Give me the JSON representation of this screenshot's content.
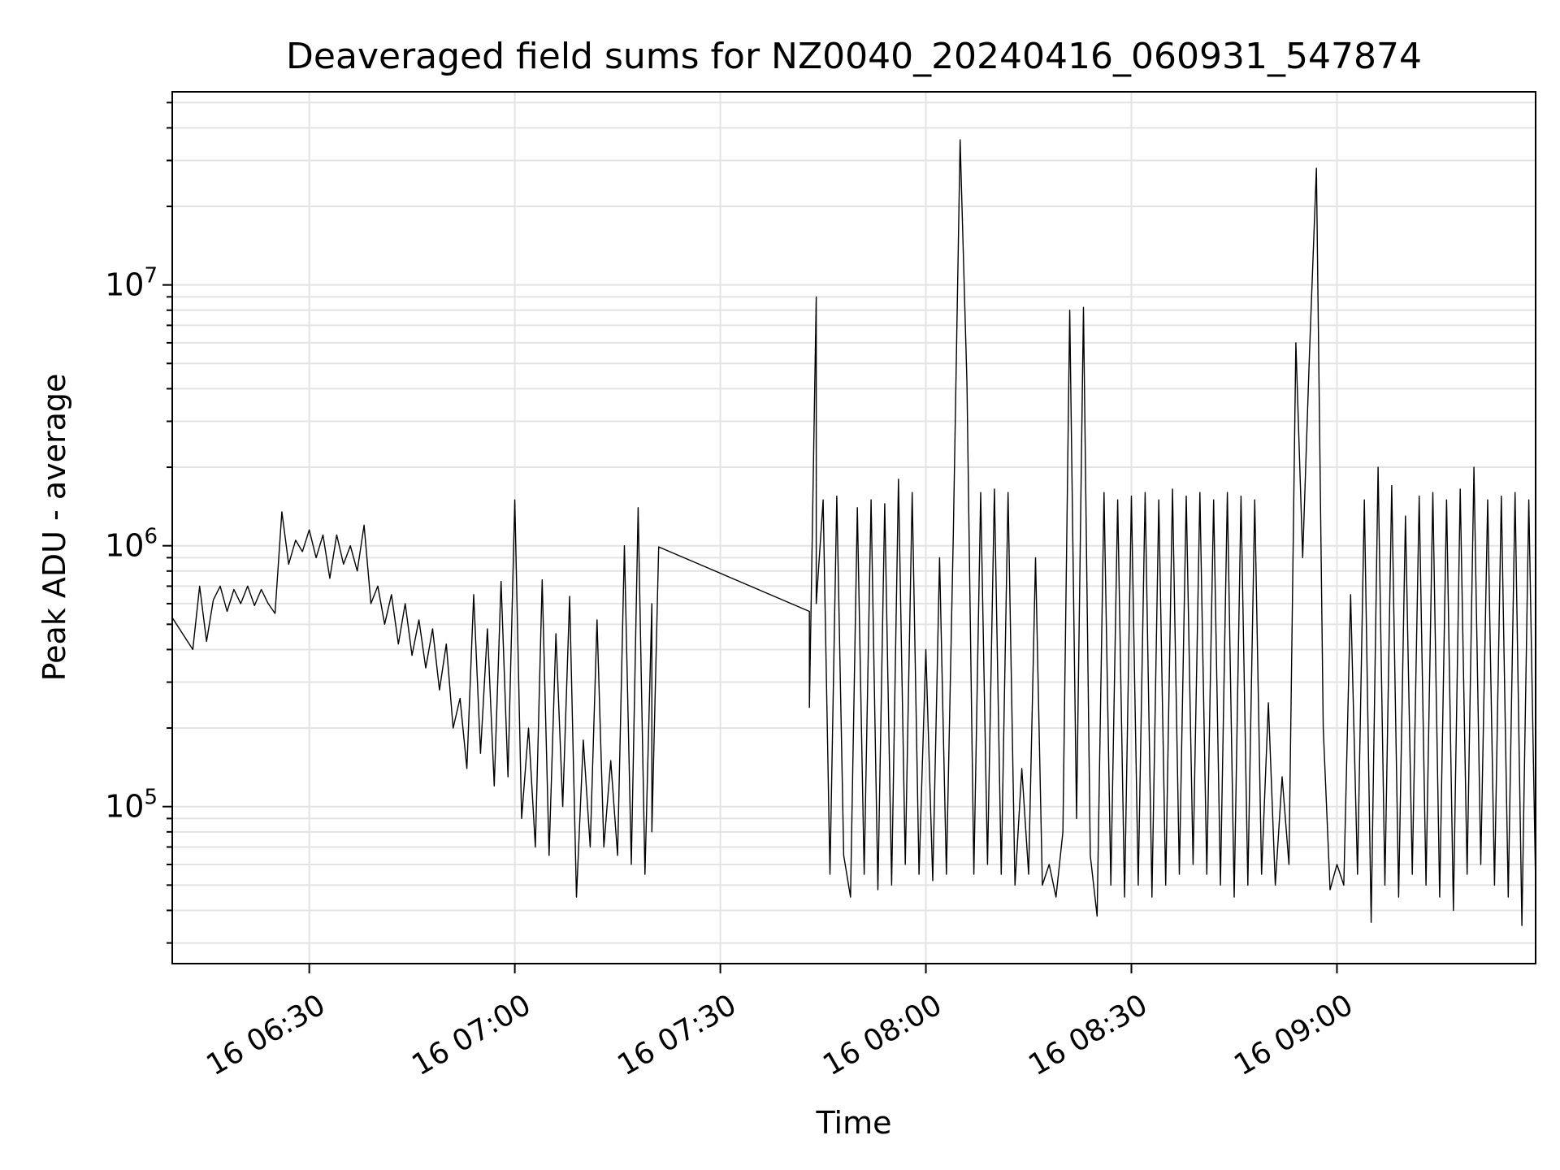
{
  "chart_data": {
    "type": "line",
    "title": "Deaveraged field sums for NZ0040_20240416_060931_547874",
    "xlabel": "Time",
    "ylabel": "Peak ADU - average",
    "x_is_time": true,
    "xlim": [
      "2024-04-16 06:10",
      "2024-04-16 09:29"
    ],
    "ylim": [
      25000,
      55000000
    ],
    "y_scale": "log",
    "grid": true,
    "x_ticks": [
      {
        "t": "2024-04-16 06:30",
        "label": "16 06:30"
      },
      {
        "t": "2024-04-16 07:00",
        "label": "16 07:00"
      },
      {
        "t": "2024-04-16 07:30",
        "label": "16 07:30"
      },
      {
        "t": "2024-04-16 08:00",
        "label": "16 08:00"
      },
      {
        "t": "2024-04-16 08:30",
        "label": "16 08:30"
      },
      {
        "t": "2024-04-16 09:00",
        "label": "16 09:00"
      }
    ],
    "y_ticks": [
      {
        "value": 100000,
        "base": "10",
        "exp": "5"
      },
      {
        "value": 1000000,
        "base": "10",
        "exp": "6"
      },
      {
        "value": 10000000,
        "base": "10",
        "exp": "7"
      }
    ],
    "series": [
      {
        "color": "#000000",
        "points": [
          [
            "2024-04-16 06:10",
            530000
          ],
          [
            "2024-04-16 06:13",
            400000
          ],
          [
            "2024-04-16 06:14",
            700000
          ],
          [
            "2024-04-16 06:15",
            430000
          ],
          [
            "2024-04-16 06:16",
            620000
          ],
          [
            "2024-04-16 06:17",
            700000
          ],
          [
            "2024-04-16 06:18",
            560000
          ],
          [
            "2024-04-16 06:19",
            680000
          ],
          [
            "2024-04-16 06:20",
            600000
          ],
          [
            "2024-04-16 06:21",
            700000
          ],
          [
            "2024-04-16 06:22",
            590000
          ],
          [
            "2024-04-16 06:23",
            680000
          ],
          [
            "2024-04-16 06:24",
            600000
          ],
          [
            "2024-04-16 06:25",
            550000
          ],
          [
            "2024-04-16 06:26",
            1350000
          ],
          [
            "2024-04-16 06:27",
            850000
          ],
          [
            "2024-04-16 06:28",
            1050000
          ],
          [
            "2024-04-16 06:29",
            950000
          ],
          [
            "2024-04-16 06:30",
            1150000
          ],
          [
            "2024-04-16 06:31",
            900000
          ],
          [
            "2024-04-16 06:32",
            1100000
          ],
          [
            "2024-04-16 06:33",
            750000
          ],
          [
            "2024-04-16 06:34",
            1100000
          ],
          [
            "2024-04-16 06:35",
            850000
          ],
          [
            "2024-04-16 06:36",
            1000000
          ],
          [
            "2024-04-16 06:37",
            800000
          ],
          [
            "2024-04-16 06:38",
            1200000
          ],
          [
            "2024-04-16 06:39",
            600000
          ],
          [
            "2024-04-16 06:40",
            700000
          ],
          [
            "2024-04-16 06:41",
            500000
          ],
          [
            "2024-04-16 06:42",
            650000
          ],
          [
            "2024-04-16 06:43",
            420000
          ],
          [
            "2024-04-16 06:44",
            600000
          ],
          [
            "2024-04-16 06:45",
            380000
          ],
          [
            "2024-04-16 06:46",
            520000
          ],
          [
            "2024-04-16 06:47",
            340000
          ],
          [
            "2024-04-16 06:48",
            480000
          ],
          [
            "2024-04-16 06:49",
            280000
          ],
          [
            "2024-04-16 06:50",
            420000
          ],
          [
            "2024-04-16 06:51",
            200000
          ],
          [
            "2024-04-16 06:52",
            260000
          ],
          [
            "2024-04-16 06:53",
            140000
          ],
          [
            "2024-04-16 06:54",
            650000
          ],
          [
            "2024-04-16 06:55",
            160000
          ],
          [
            "2024-04-16 06:56",
            480000
          ],
          [
            "2024-04-16 06:57",
            120000
          ],
          [
            "2024-04-16 06:58",
            730000
          ],
          [
            "2024-04-16 06:59",
            130000
          ],
          [
            "2024-04-16 07:00",
            1500000
          ],
          [
            "2024-04-16 07:01",
            90000
          ],
          [
            "2024-04-16 07:02",
            200000
          ],
          [
            "2024-04-16 07:03",
            70000
          ],
          [
            "2024-04-16 07:04",
            740000
          ],
          [
            "2024-04-16 07:05",
            65000
          ],
          [
            "2024-04-16 07:06",
            460000
          ],
          [
            "2024-04-16 07:07",
            100000
          ],
          [
            "2024-04-16 07:08",
            640000
          ],
          [
            "2024-04-16 07:09",
            45000
          ],
          [
            "2024-04-16 07:10",
            180000
          ],
          [
            "2024-04-16 07:11",
            70000
          ],
          [
            "2024-04-16 07:12",
            520000
          ],
          [
            "2024-04-16 07:13",
            70000
          ],
          [
            "2024-04-16 07:14",
            150000
          ],
          [
            "2024-04-16 07:15",
            65000
          ],
          [
            "2024-04-16 07:16",
            1000000
          ],
          [
            "2024-04-16 07:17",
            60000
          ],
          [
            "2024-04-16 07:18",
            1400000
          ],
          [
            "2024-04-16 07:19",
            55000
          ],
          [
            "2024-04-16 07:20",
            600000
          ],
          [
            "2024-04-16 07:20",
            80000
          ],
          [
            "2024-04-16 07:21",
            990000
          ],
          [
            "2024-04-16 07:43",
            560000
          ],
          [
            "2024-04-16 07:43",
            240000
          ],
          [
            "2024-04-16 07:44",
            9000000
          ],
          [
            "2024-04-16 07:44",
            600000
          ],
          [
            "2024-04-16 07:45",
            1500000
          ],
          [
            "2024-04-16 07:46",
            55000
          ],
          [
            "2024-04-16 07:47",
            1550000
          ],
          [
            "2024-04-16 07:48",
            65000
          ],
          [
            "2024-04-16 07:49",
            45000
          ],
          [
            "2024-04-16 07:50",
            1400000
          ],
          [
            "2024-04-16 07:51",
            55000
          ],
          [
            "2024-04-16 07:52",
            1500000
          ],
          [
            "2024-04-16 07:53",
            48000
          ],
          [
            "2024-04-16 07:54",
            1450000
          ],
          [
            "2024-04-16 07:55",
            50000
          ],
          [
            "2024-04-16 07:56",
            1800000
          ],
          [
            "2024-04-16 07:57",
            60000
          ],
          [
            "2024-04-16 07:58",
            1600000
          ],
          [
            "2024-04-16 07:59",
            55000
          ],
          [
            "2024-04-16 08:00",
            400000
          ],
          [
            "2024-04-16 08:01",
            52000
          ],
          [
            "2024-04-16 08:02",
            900000
          ],
          [
            "2024-04-16 08:03",
            55000
          ],
          [
            "2024-04-16 08:04",
            1100000
          ],
          [
            "2024-04-16 08:05",
            36000000
          ],
          [
            "2024-04-16 08:06",
            4200000
          ],
          [
            "2024-04-16 08:07",
            55000
          ],
          [
            "2024-04-16 08:08",
            1600000
          ],
          [
            "2024-04-16 08:09",
            60000
          ],
          [
            "2024-04-16 08:10",
            1650000
          ],
          [
            "2024-04-16 08:11",
            55000
          ],
          [
            "2024-04-16 08:12",
            1600000
          ],
          [
            "2024-04-16 08:13",
            50000
          ],
          [
            "2024-04-16 08:14",
            140000
          ],
          [
            "2024-04-16 08:15",
            55000
          ],
          [
            "2024-04-16 08:16",
            900000
          ],
          [
            "2024-04-16 08:17",
            50000
          ],
          [
            "2024-04-16 08:18",
            60000
          ],
          [
            "2024-04-16 08:19",
            45000
          ],
          [
            "2024-04-16 08:20",
            80000
          ],
          [
            "2024-04-16 08:21",
            8000000
          ],
          [
            "2024-04-16 08:22",
            90000
          ],
          [
            "2024-04-16 08:23",
            8200000
          ],
          [
            "2024-04-16 08:24",
            65000
          ],
          [
            "2024-04-16 08:25",
            38000
          ],
          [
            "2024-04-16 08:26",
            1600000
          ],
          [
            "2024-04-16 08:27",
            50000
          ],
          [
            "2024-04-16 08:28",
            1500000
          ],
          [
            "2024-04-16 08:29",
            45000
          ],
          [
            "2024-04-16 08:30",
            1550000
          ],
          [
            "2024-04-16 08:31",
            50000
          ],
          [
            "2024-04-16 08:32",
            1600000
          ],
          [
            "2024-04-16 08:33",
            45000
          ],
          [
            "2024-04-16 08:34",
            1500000
          ],
          [
            "2024-04-16 08:35",
            50000
          ],
          [
            "2024-04-16 08:36",
            1650000
          ],
          [
            "2024-04-16 08:37",
            55000
          ],
          [
            "2024-04-16 08:38",
            1550000
          ],
          [
            "2024-04-16 08:39",
            60000
          ],
          [
            "2024-04-16 08:40",
            1600000
          ],
          [
            "2024-04-16 08:41",
            55000
          ],
          [
            "2024-04-16 08:42",
            1500000
          ],
          [
            "2024-04-16 08:43",
            50000
          ],
          [
            "2024-04-16 08:44",
            1600000
          ],
          [
            "2024-04-16 08:45",
            45000
          ],
          [
            "2024-04-16 08:46",
            1550000
          ],
          [
            "2024-04-16 08:47",
            50000
          ],
          [
            "2024-04-16 08:48",
            1500000
          ],
          [
            "2024-04-16 08:49",
            55000
          ],
          [
            "2024-04-16 08:50",
            250000
          ],
          [
            "2024-04-16 08:51",
            50000
          ],
          [
            "2024-04-16 08:52",
            130000
          ],
          [
            "2024-04-16 08:53",
            60000
          ],
          [
            "2024-04-16 08:54",
            6000000
          ],
          [
            "2024-04-16 08:55",
            900000
          ],
          [
            "2024-04-16 08:56",
            5500000
          ],
          [
            "2024-04-16 08:57",
            28000000
          ],
          [
            "2024-04-16 08:58",
            200000
          ],
          [
            "2024-04-16 08:59",
            48000
          ],
          [
            "2024-04-16 09:00",
            60000
          ],
          [
            "2024-04-16 09:01",
            50000
          ],
          [
            "2024-04-16 09:02",
            650000
          ],
          [
            "2024-04-16 09:03",
            55000
          ],
          [
            "2024-04-16 09:04",
            1500000
          ],
          [
            "2024-04-16 09:05",
            36000
          ],
          [
            "2024-04-16 09:06",
            2000000
          ],
          [
            "2024-04-16 09:07",
            50000
          ],
          [
            "2024-04-16 09:08",
            1700000
          ],
          [
            "2024-04-16 09:09",
            45000
          ],
          [
            "2024-04-16 09:10",
            1300000
          ],
          [
            "2024-04-16 09:11",
            55000
          ],
          [
            "2024-04-16 09:12",
            1550000
          ],
          [
            "2024-04-16 09:13",
            50000
          ],
          [
            "2024-04-16 09:14",
            1600000
          ],
          [
            "2024-04-16 09:15",
            45000
          ],
          [
            "2024-04-16 09:16",
            1500000
          ],
          [
            "2024-04-16 09:17",
            40000
          ],
          [
            "2024-04-16 09:18",
            1650000
          ],
          [
            "2024-04-16 09:19",
            55000
          ],
          [
            "2024-04-16 09:20",
            2000000
          ],
          [
            "2024-04-16 09:21",
            60000
          ],
          [
            "2024-04-16 09:22",
            1500000
          ],
          [
            "2024-04-16 09:23",
            50000
          ],
          [
            "2024-04-16 09:24",
            1550000
          ],
          [
            "2024-04-16 09:25",
            45000
          ],
          [
            "2024-04-16 09:26",
            1600000
          ],
          [
            "2024-04-16 09:27",
            35000
          ],
          [
            "2024-04-16 09:28",
            1500000
          ],
          [
            "2024-04-16 09:29",
            50000
          ]
        ]
      }
    ]
  }
}
